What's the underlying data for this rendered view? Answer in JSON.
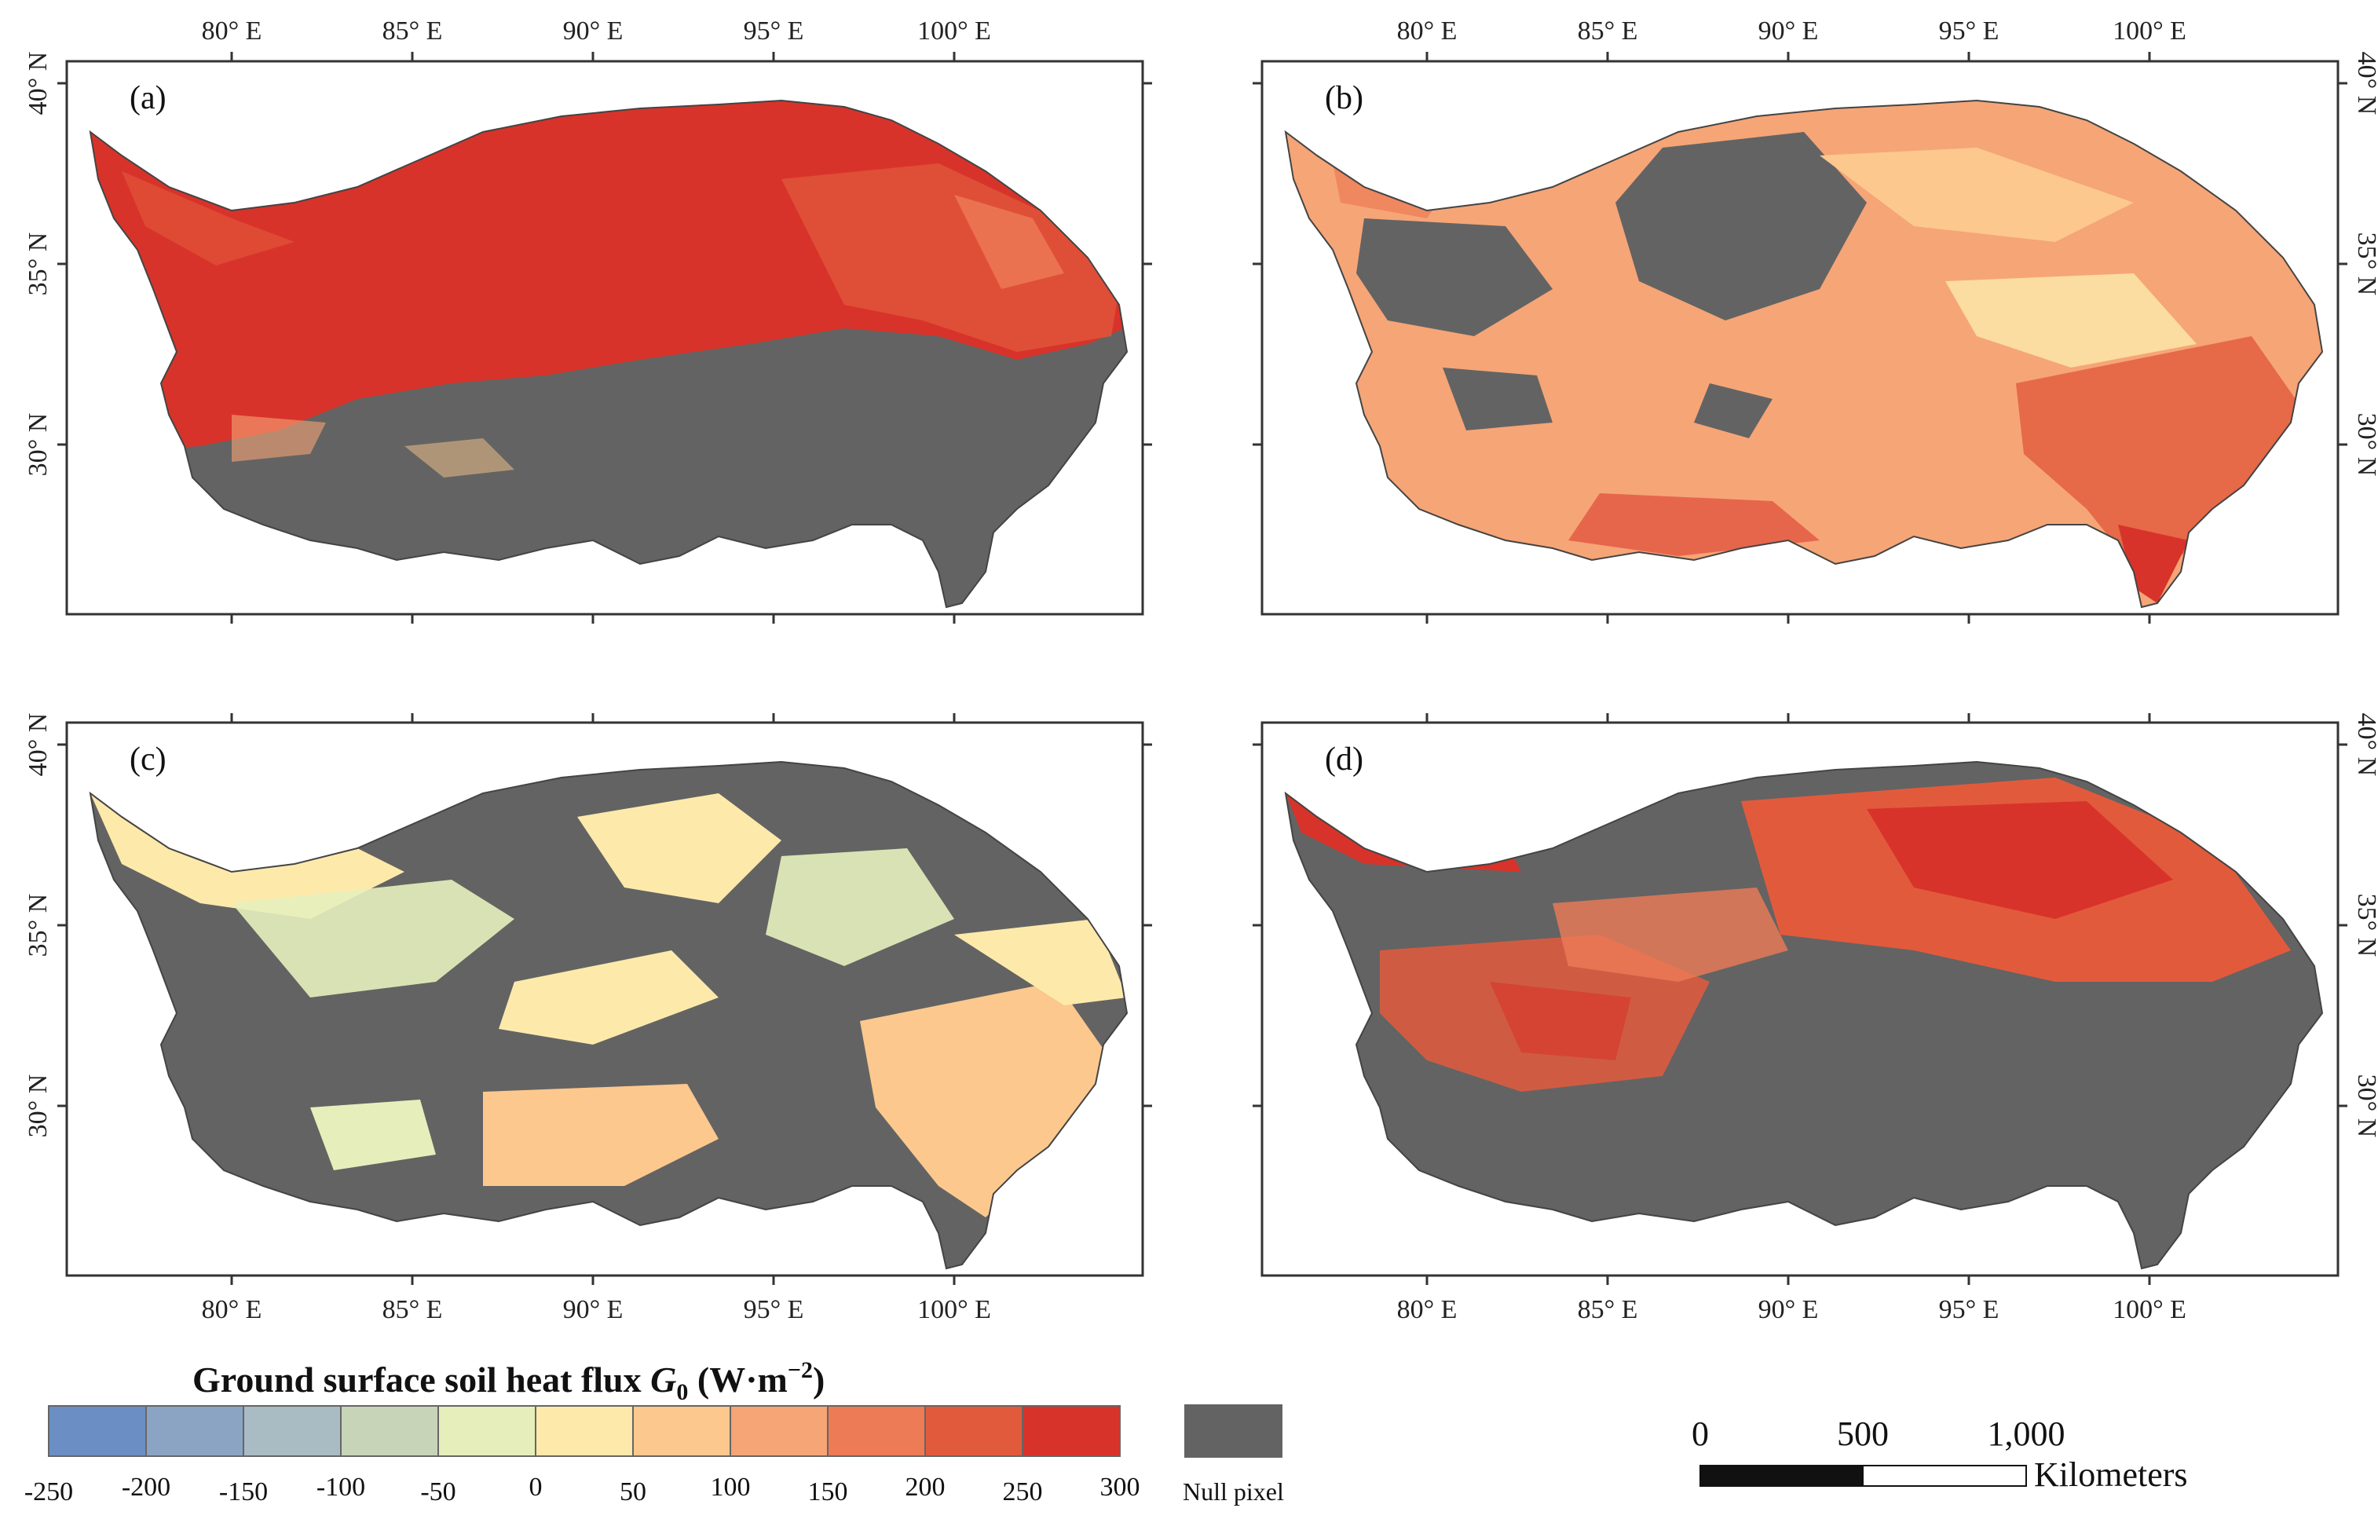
{
  "figure": {
    "panels": [
      {
        "id": "a",
        "label": "(a)"
      },
      {
        "id": "b",
        "label": "(b)"
      },
      {
        "id": "c",
        "label": "(c)"
      },
      {
        "id": "d",
        "label": "(d)"
      }
    ],
    "lon_ticks": [
      "80° E",
      "85° E",
      "90° E",
      "95° E",
      "100° E"
    ],
    "lat_ticks": [
      "40° N",
      "35° N",
      "30° N"
    ]
  },
  "legend": {
    "title_prefix": "Ground surface soil heat flux ",
    "title_symbol": "G",
    "title_subscript": "0",
    "title_units_open": " (W·m",
    "title_units_exp": "−2",
    "title_units_close": ")",
    "bins": [
      {
        "color": "#6b8fc4"
      },
      {
        "color": "#8ca4c4"
      },
      {
        "color": "#a9bcc4"
      },
      {
        "color": "#c8d4b8"
      },
      {
        "color": "#e6efbc"
      },
      {
        "color": "#fdeaab"
      },
      {
        "color": "#fcc88e"
      },
      {
        "color": "#f6a577"
      },
      {
        "color": "#ec7b56"
      },
      {
        "color": "#e25a3c"
      },
      {
        "color": "#d8332a"
      }
    ],
    "tick_labels": [
      "-250",
      "-200",
      "-150",
      "-100",
      "-50",
      "0",
      "50",
      "100",
      "150",
      "200",
      "250",
      "300"
    ],
    "null_label": "Null pixel",
    "null_color": "#636363"
  },
  "scalebar": {
    "labels": [
      "0",
      "500",
      "1,000"
    ],
    "units": "Kilometers"
  },
  "colors": {
    "null": "#636363",
    "outline": "#444444"
  }
}
